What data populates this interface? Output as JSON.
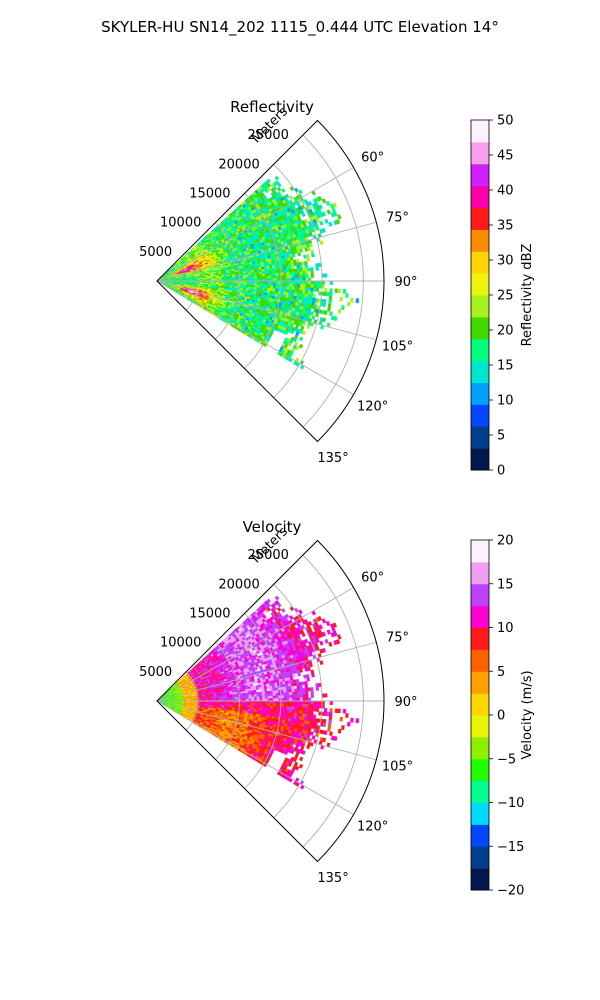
{
  "figure": {
    "title": "SKYLER-HU  SN14_202  1115_0.444 UTC Elevation 14°"
  },
  "chart_data": [
    {
      "type": "heatmap",
      "subtype": "polar-sector",
      "title": "Reflectivity",
      "range_label": "Meters",
      "range_ticks": [
        5000,
        10000,
        15000,
        20000,
        25000
      ],
      "range_tick_labels": [
        "5000",
        "10000",
        "15000",
        "20000",
        "25000"
      ],
      "range_max": 27500,
      "azimuth_range_deg": [
        45,
        135
      ],
      "azimuth_ticks": [
        60,
        75,
        90,
        105,
        120,
        135
      ],
      "azimuth_tick_labels": [
        "60°",
        "75°",
        "90°",
        "105°",
        "120°",
        "135°"
      ],
      "grid": true,
      "colorbar": {
        "label": "Reflectivity dBZ",
        "min": 0,
        "max": 50,
        "ticks": [
          0,
          5,
          10,
          15,
          20,
          25,
          30,
          35,
          40,
          45,
          50
        ],
        "tick_labels": [
          "0",
          "5",
          "10",
          "15",
          "20",
          "25",
          "30",
          "35",
          "40",
          "45",
          "50"
        ],
        "colormap": [
          "#00194d",
          "#00408a",
          "#0047ff",
          "#00a0ff",
          "#00e5d0",
          "#00ff7f",
          "#42d800",
          "#a6f21a",
          "#eef20f",
          "#ffd500",
          "#ff8c00",
          "#ff1a1a",
          "#ff00aa",
          "#d020ff",
          "#f7a0f0",
          "#fff0ff"
        ]
      },
      "field_features": [
        {
          "kind": "echo-region",
          "az": [
            49,
            121
          ],
          "range": [
            0,
            21000
          ],
          "value_dbz": 20
        },
        {
          "kind": "core",
          "az": [
            66,
            76
          ],
          "range": [
            1500,
            6000
          ],
          "value_dbz": 38
        },
        {
          "kind": "core",
          "az": [
            103,
            112
          ],
          "range": [
            2000,
            6500
          ],
          "value_dbz": 38
        },
        {
          "kind": "band",
          "az": [
            62,
            118
          ],
          "range": [
            3000,
            8000
          ],
          "value_dbz": 30
        }
      ]
    },
    {
      "type": "heatmap",
      "subtype": "polar-sector",
      "title": "Velocity",
      "range_label": "Meters",
      "range_ticks": [
        5000,
        10000,
        15000,
        20000,
        25000
      ],
      "range_tick_labels": [
        "5000",
        "10000",
        "15000",
        "20000",
        "25000"
      ],
      "range_max": 27500,
      "azimuth_range_deg": [
        45,
        135
      ],
      "azimuth_ticks": [
        60,
        75,
        90,
        105,
        120,
        135
      ],
      "azimuth_tick_labels": [
        "60°",
        "75°",
        "90°",
        "105°",
        "120°",
        "135°"
      ],
      "grid": true,
      "colorbar": {
        "label": "Velocity (m/s)",
        "min": -20,
        "max": 20,
        "ticks": [
          -20,
          -15,
          -10,
          -5,
          0,
          5,
          10,
          15,
          20
        ],
        "tick_labels": [
          "−20",
          "−15",
          "−10",
          "−5",
          "0",
          "5",
          "10",
          "15",
          "20"
        ],
        "colormap": [
          "#00194d",
          "#00408a",
          "#0047ff",
          "#00d8ff",
          "#00ff90",
          "#22ff00",
          "#8cf000",
          "#e8f500",
          "#ffd500",
          "#ffa000",
          "#ff6000",
          "#ff1a1a",
          "#ff00d0",
          "#c040ff",
          "#f0a0f0",
          "#fff0ff"
        ]
      },
      "field_features": [
        {
          "kind": "echo-region",
          "az": [
            49,
            121
          ],
          "range": [
            0,
            21000
          ],
          "value_ms": 10
        },
        {
          "kind": "near-range",
          "az": [
            60,
            120
          ],
          "range": [
            0,
            4000
          ],
          "value_ms": -8
        },
        {
          "kind": "region",
          "az": [
            50,
            95
          ],
          "range": [
            6000,
            21000
          ],
          "value_ms": 15
        },
        {
          "kind": "region",
          "az": [
            95,
            122
          ],
          "range": [
            4000,
            16000
          ],
          "value_ms": 5
        }
      ]
    }
  ]
}
